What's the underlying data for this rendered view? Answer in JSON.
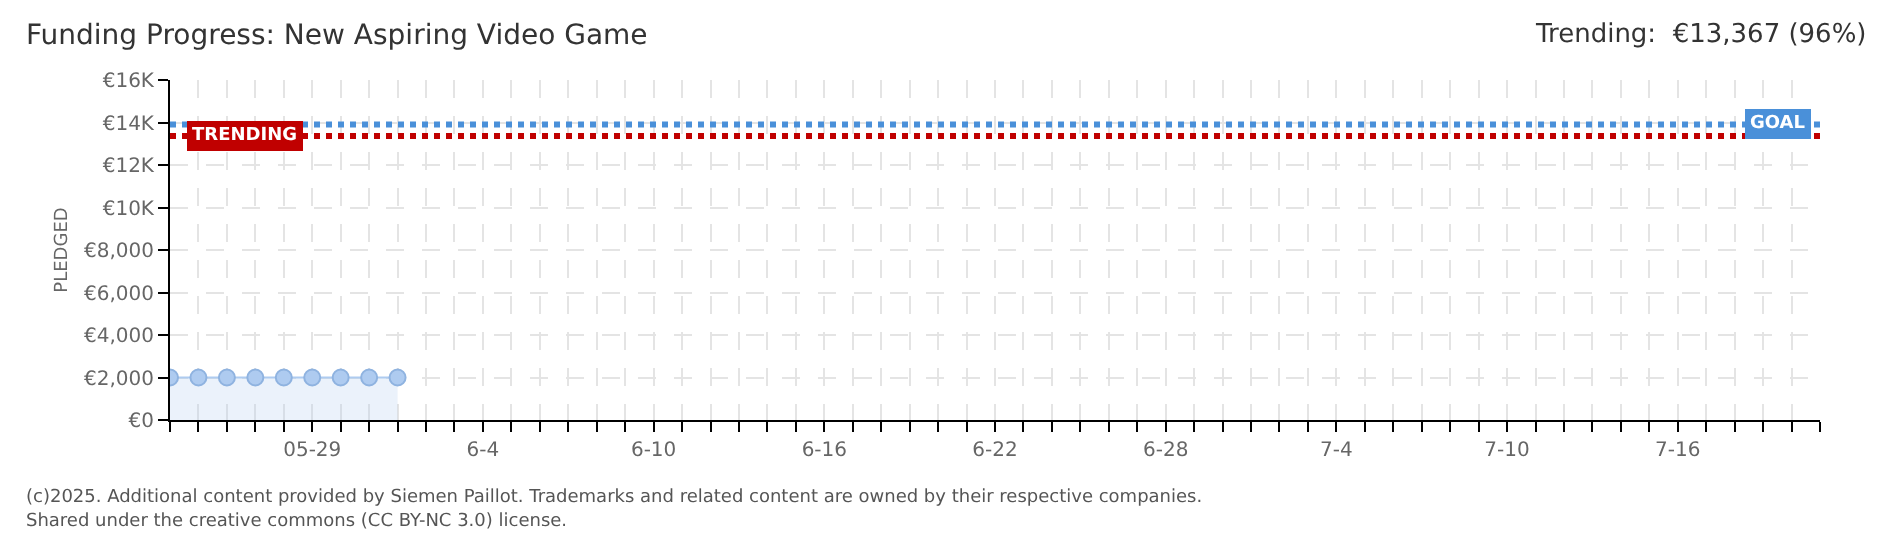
{
  "chart_data": {
    "type": "area",
    "title": "Funding Progress: New Aspiring Video Game",
    "subtitle": "Trending:  €13,367 (96%)",
    "ylabel": "PLEDGED",
    "x": [
      "--05-24",
      "--05-25",
      "--05-26",
      "--05-27",
      "--05-28",
      "--05-29",
      "--05-30",
      "--05-31",
      "--06-01"
    ],
    "series": [
      {
        "color": "#aecbf0",
        "values": [
          2000,
          2000,
          2000,
          2000,
          2000,
          2000,
          2000,
          2000,
          2000
        ]
      }
    ],
    "xlim": [
      "--05-24",
      "--07-21"
    ],
    "xticks": [
      {
        "value": "--05-24",
        "label": null
      },
      {
        "value": "--05-25",
        "label": null
      },
      {
        "value": "--05-26",
        "label": null
      },
      {
        "value": "--05-27",
        "label": null
      },
      {
        "value": "--05-28",
        "label": null
      },
      {
        "value": "--05-29",
        "label": "05-29"
      },
      {
        "value": "--05-30",
        "label": null
      },
      {
        "value": "--05-31",
        "label": null
      },
      {
        "value": "--06-01",
        "label": null
      },
      {
        "value": "--06-02",
        "label": null
      },
      {
        "value": "--06-03",
        "label": null
      },
      {
        "value": "--06-04",
        "label": "6-4"
      },
      {
        "value": "--06-05",
        "label": null
      },
      {
        "value": "--06-06",
        "label": null
      },
      {
        "value": "--06-07",
        "label": null
      },
      {
        "value": "--06-08",
        "label": null
      },
      {
        "value": "--06-09",
        "label": null
      },
      {
        "value": "--06-10",
        "label": "6-10"
      },
      {
        "value": "--06-11",
        "label": null
      },
      {
        "value": "--06-12",
        "label": null
      },
      {
        "value": "--06-13",
        "label": null
      },
      {
        "value": "--06-14",
        "label": null
      },
      {
        "value": "--06-15",
        "label": null
      },
      {
        "value": "--06-16",
        "label": "6-16"
      },
      {
        "value": "--06-17",
        "label": null
      },
      {
        "value": "--06-18",
        "label": null
      },
      {
        "value": "--06-19",
        "label": null
      },
      {
        "value": "--06-20",
        "label": null
      },
      {
        "value": "--06-21",
        "label": null
      },
      {
        "value": "--06-22",
        "label": "6-22"
      },
      {
        "value": "--06-23",
        "label": null
      },
      {
        "value": "--06-24",
        "label": null
      },
      {
        "value": "--06-25",
        "label": null
      },
      {
        "value": "--06-26",
        "label": null
      },
      {
        "value": "--06-27",
        "label": null
      },
      {
        "value": "--06-28",
        "label": "6-28"
      },
      {
        "value": "--06-29",
        "label": null
      },
      {
        "value": "--06-30",
        "label": null
      },
      {
        "value": "--07-01",
        "label": null
      },
      {
        "value": "--07-02",
        "label": null
      },
      {
        "value": "--07-03",
        "label": null
      },
      {
        "value": "--07-04",
        "label": "7-4"
      },
      {
        "value": "--07-05",
        "label": null
      },
      {
        "value": "--07-06",
        "label": null
      },
      {
        "value": "--07-07",
        "label": null
      },
      {
        "value": "--07-08",
        "label": null
      },
      {
        "value": "--07-09",
        "label": null
      },
      {
        "value": "--07-10",
        "label": "7-10"
      },
      {
        "value": "--07-11",
        "label": null
      },
      {
        "value": "--07-12",
        "label": null
      },
      {
        "value": "--07-13",
        "label": null
      },
      {
        "value": "--07-14",
        "label": null
      },
      {
        "value": "--07-15",
        "label": null
      },
      {
        "value": "--07-16",
        "label": "7-16"
      },
      {
        "value": "--07-17",
        "label": null
      },
      {
        "value": "--07-18",
        "label": null
      },
      {
        "value": "--07-19",
        "label": null
      },
      {
        "value": "--07-20",
        "label": null
      },
      {
        "value": "--07-21",
        "label": null
      }
    ],
    "ylim": [
      0,
      16000
    ],
    "yticks": [
      {
        "value": 0,
        "label": "€0"
      },
      {
        "value": 2000,
        "label": "€2,000"
      },
      {
        "value": 4000,
        "label": "€4,000"
      },
      {
        "value": 6000,
        "label": "€6,000"
      },
      {
        "value": 8000,
        "label": "€8,000"
      },
      {
        "value": 10000,
        "label": "€10K"
      },
      {
        "value": 12000,
        "label": "€12K"
      },
      {
        "value": 14000,
        "label": "€14K"
      },
      {
        "value": 16000,
        "label": "€16K"
      }
    ],
    "ref_lines": [
      {
        "axis": "y",
        "value": 13900,
        "label": "GOAL",
        "color": "#4a90d9",
        "line_style": "dotted"
      },
      {
        "axis": "y",
        "value": 13367,
        "label": "TRENDING",
        "color": "#c00000",
        "line_style": "dotted"
      }
    ],
    "annotations": [
      "(c)2025. Additional content provided by Siemen Paillot. Trademarks and related content are owned by their respective companies.",
      "Shared under the creative commons (CC BY-NC 3.0) license."
    ],
    "grid": true,
    "marker": "circle",
    "legend": false
  }
}
